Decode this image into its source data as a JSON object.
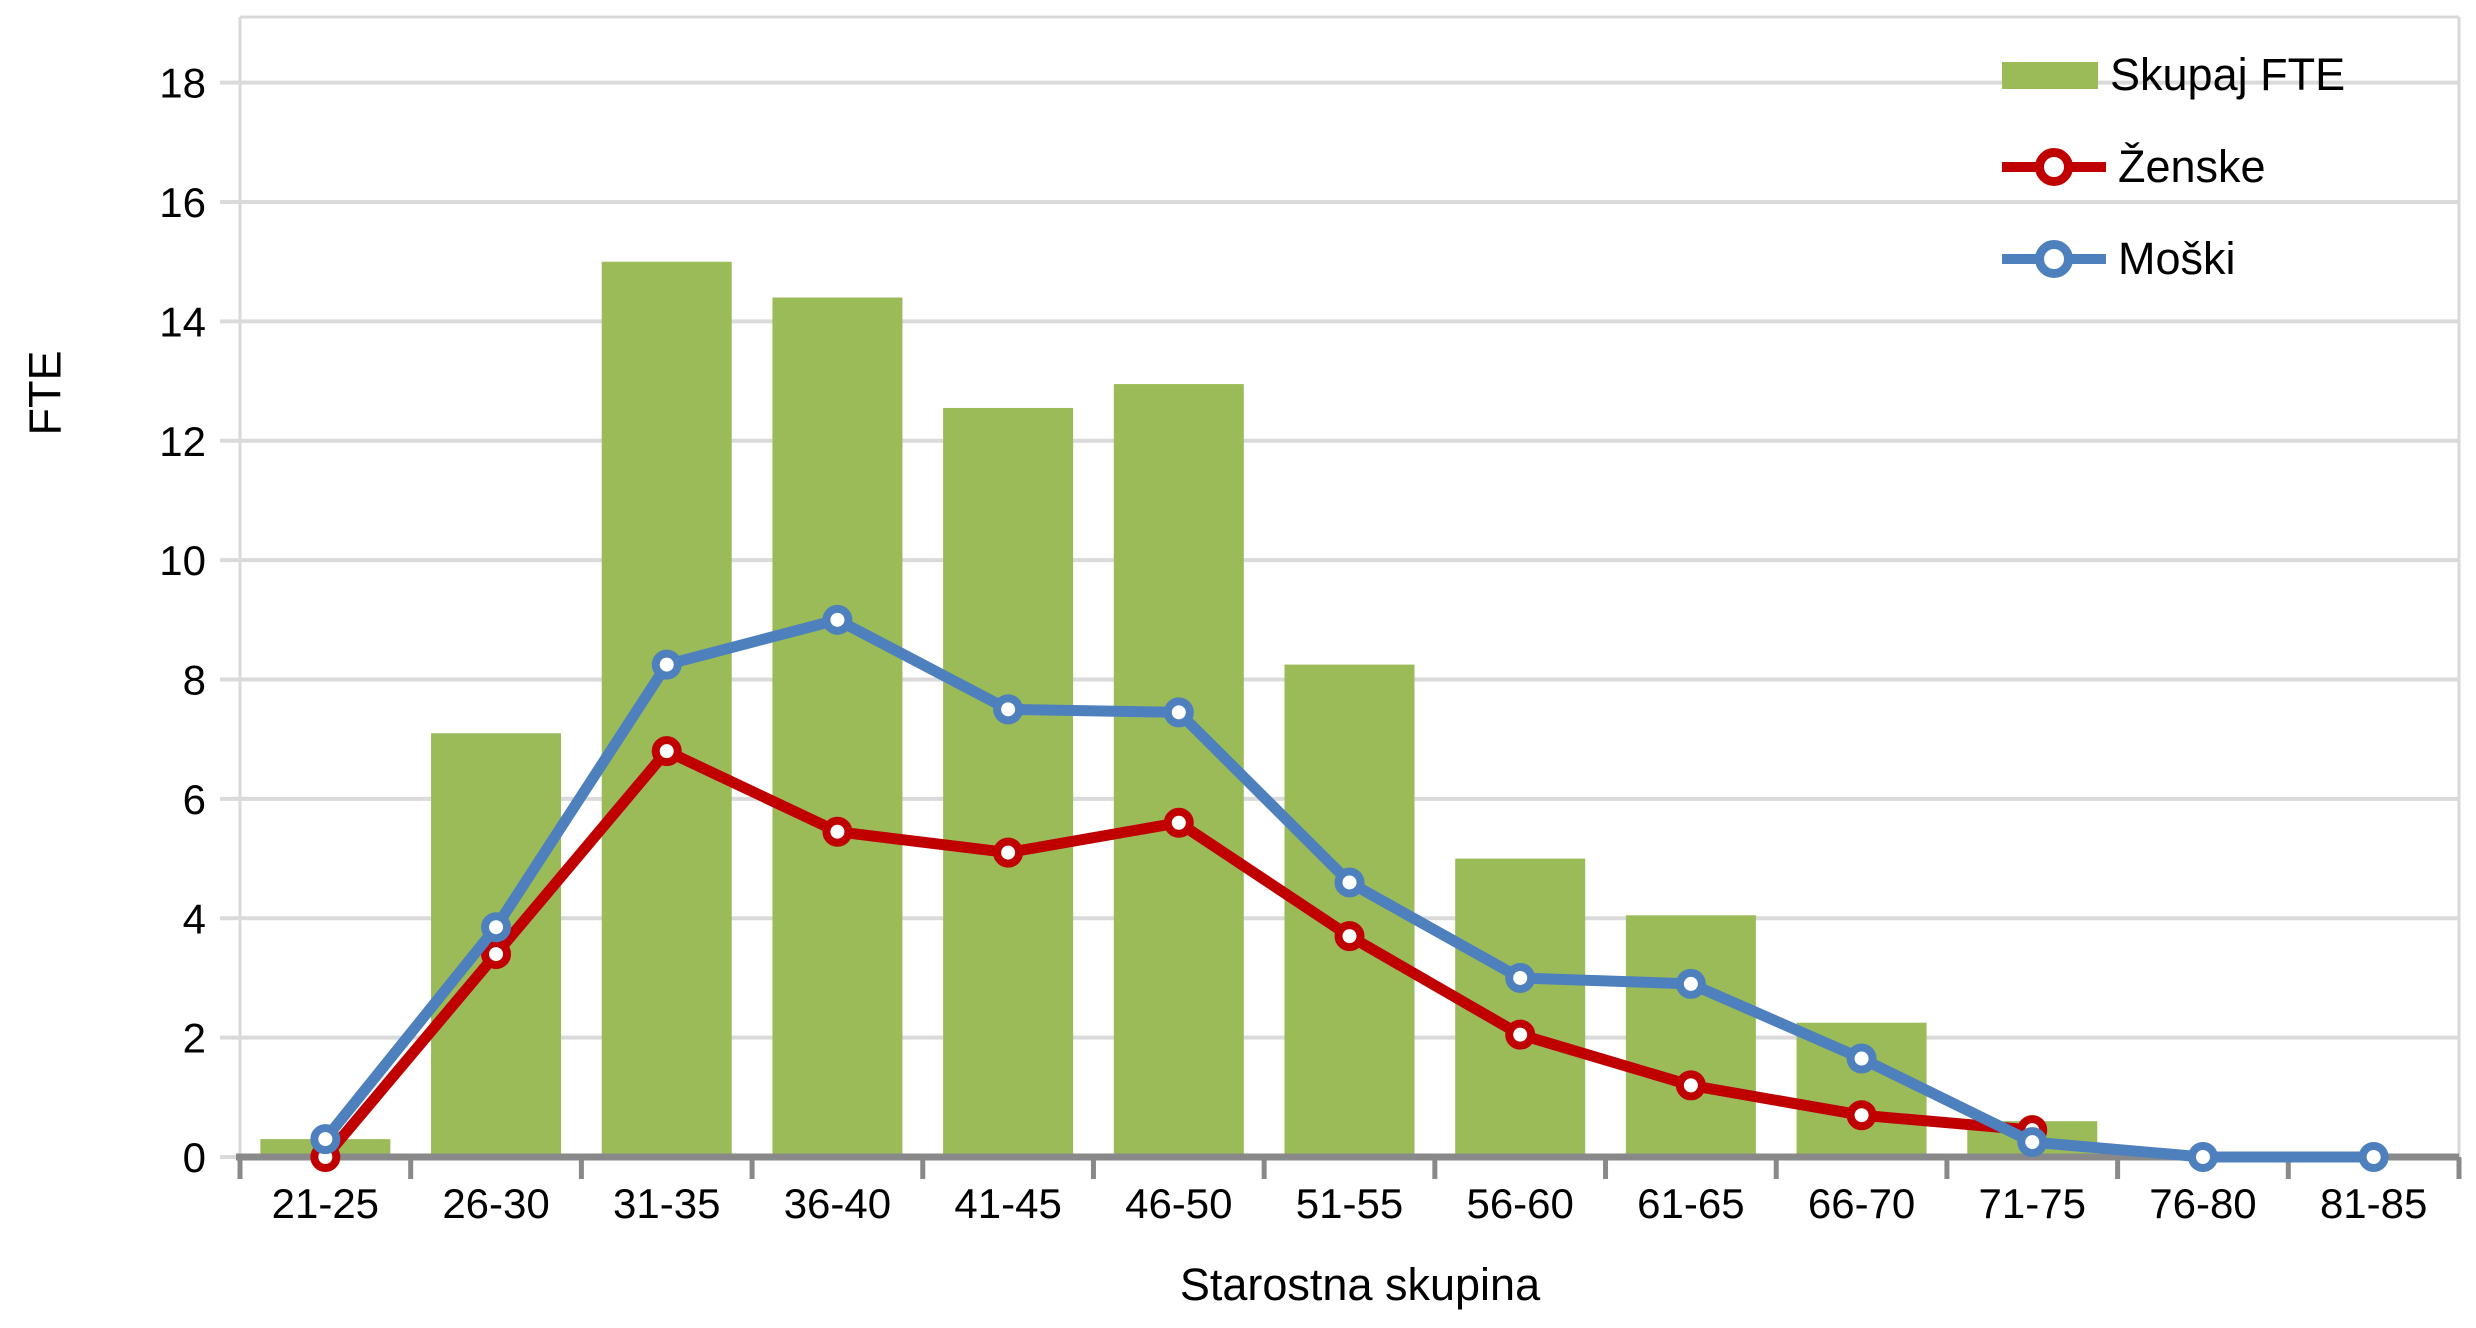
{
  "chart_data": {
    "type": "combo",
    "title": "",
    "xlabel": "Starostna skupina",
    "ylabel": "FTE",
    "categories": [
      "21-25",
      "26-30",
      "31-35",
      "36-40",
      "41-45",
      "46-50",
      "51-55",
      "56-60",
      "61-65",
      "66-70",
      "71-75",
      "76-80",
      "81-85"
    ],
    "y_ticks": [
      0,
      2,
      4,
      6,
      8,
      10,
      12,
      14,
      16,
      18
    ],
    "ylim": [
      0,
      18
    ],
    "grid": "horizontal",
    "legend_position": "top-right",
    "series": [
      {
        "name": "Skupaj FTE",
        "type": "bar",
        "color": "#9BBB59",
        "values": [
          0.3,
          7.1,
          15,
          14.4,
          12.55,
          12.95,
          8.25,
          5,
          4.05,
          2.25,
          0.6,
          0,
          0
        ]
      },
      {
        "name": "Ženske",
        "type": "line",
        "marker": "open-circle",
        "color": "#C00000",
        "values": [
          0,
          3.4,
          6.8,
          5.45,
          5.1,
          5.6,
          3.7,
          2.05,
          1.2,
          0.7,
          0.45,
          null,
          null
        ]
      },
      {
        "name": "Moški",
        "type": "line",
        "marker": "open-circle",
        "color": "#4D80BC",
        "values": [
          0.3,
          3.85,
          8.25,
          9,
          7.5,
          7.45,
          4.6,
          3,
          2.9,
          1.65,
          0.25,
          0,
          0
        ]
      }
    ],
    "colors": {
      "background": "#FFFFFF",
      "gridline": "#DADADA",
      "plot_border": "#D9D9D9",
      "axis_line": "#898989",
      "text": "#000000"
    }
  }
}
